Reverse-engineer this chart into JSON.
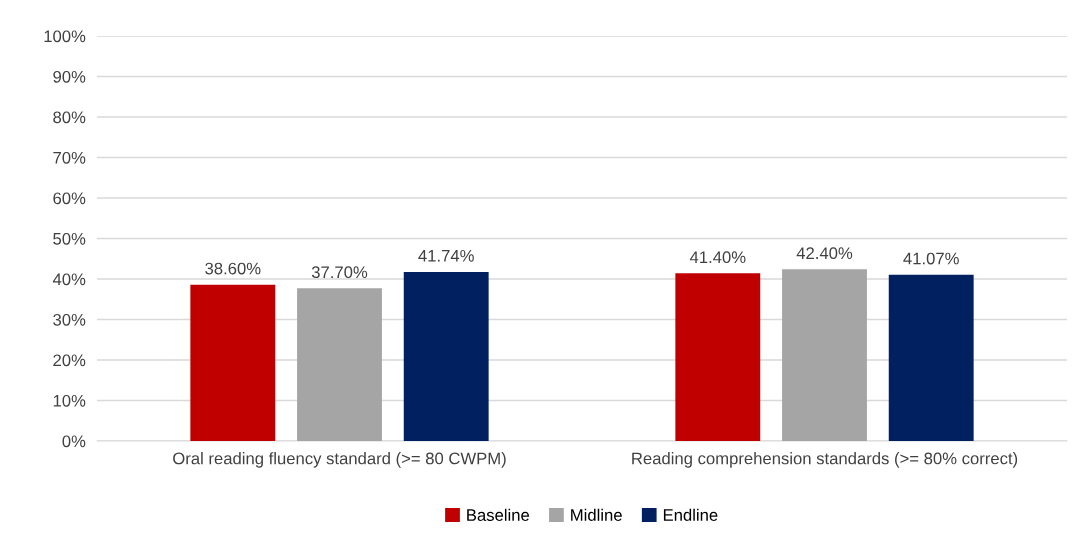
{
  "chart_data": {
    "type": "bar",
    "categories": [
      "Oral reading fluency standard (>= 80 CWPM)",
      "Reading comprehension standards (>= 80% correct)"
    ],
    "series": [
      {
        "name": "Baseline",
        "color": "#c00000",
        "values": [
          38.6,
          41.4
        ],
        "value_labels": [
          "38.60%",
          "41.40%"
        ]
      },
      {
        "name": "Midline",
        "color": "#a5a5a5",
        "values": [
          37.7,
          42.4
        ],
        "value_labels": [
          "37.70%",
          "42.40%"
        ]
      },
      {
        "name": "Endline",
        "color": "#002060",
        "values": [
          41.74,
          41.07
        ],
        "value_labels": [
          "41.74%",
          "41.07%"
        ]
      }
    ],
    "ylim": [
      0,
      100
    ],
    "yticks": [
      {
        "value": 0,
        "label": "0%"
      },
      {
        "value": 10,
        "label": "10%"
      },
      {
        "value": 20,
        "label": "20%"
      },
      {
        "value": 30,
        "label": "30%"
      },
      {
        "value": 40,
        "label": "40%"
      },
      {
        "value": 50,
        "label": "50%"
      },
      {
        "value": 60,
        "label": "60%"
      },
      {
        "value": 70,
        "label": "70%"
      },
      {
        "value": 80,
        "label": "80%"
      },
      {
        "value": 90,
        "label": "90%"
      },
      {
        "value": 100,
        "label": "100%"
      }
    ],
    "grid": "y",
    "legend": "bottom"
  }
}
